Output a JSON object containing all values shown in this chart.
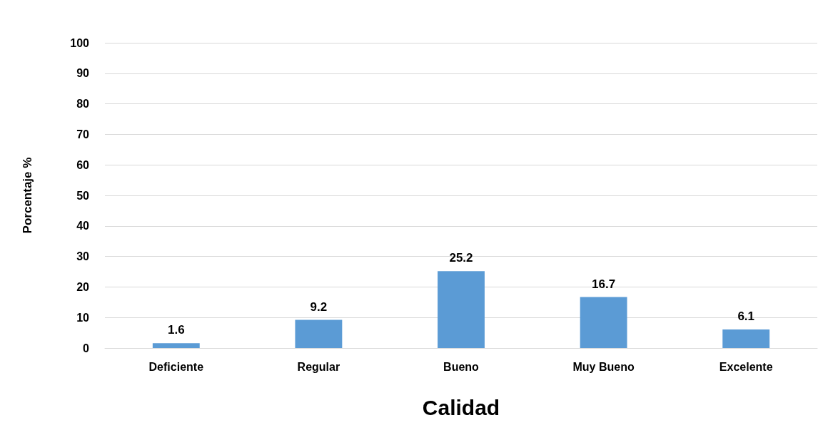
{
  "chart_data": {
    "type": "bar",
    "xlabel": "Calidad",
    "ylabel": "Porcentaje %",
    "categories": [
      "Deficiente",
      "Regular",
      "Bueno",
      "Muy Bueno",
      "Excelente"
    ],
    "values": [
      1.6,
      9.2,
      25.2,
      16.7,
      6.1
    ],
    "color": "#5b9bd5",
    "ylim": [
      0,
      100
    ],
    "yticks": [
      0,
      10,
      20,
      30,
      40,
      50,
      60,
      70,
      80,
      90,
      100
    ],
    "grid": "y",
    "data_labels": true
  }
}
